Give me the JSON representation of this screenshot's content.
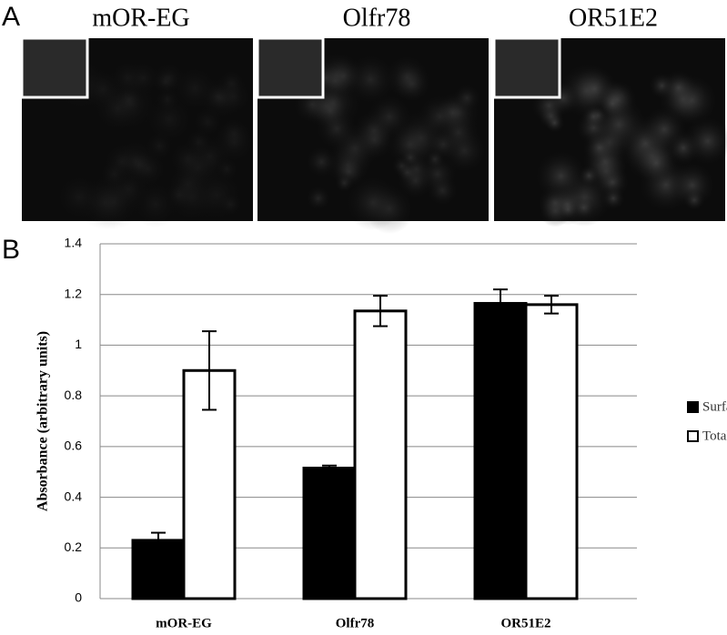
{
  "panel_a": {
    "label": "A",
    "images": [
      "mOR-EG",
      "Olfr78",
      "OR51E2"
    ]
  },
  "chart_data": {
    "type": "bar",
    "label": "B",
    "ylabel": "Absorbance (arbitrary units)",
    "categories": [
      "mOR-EG",
      "Olfr78",
      "OR51E2"
    ],
    "series": [
      {
        "name": "Surface",
        "color": "#000000",
        "values": [
          0.23,
          0.515,
          1.165
        ],
        "errors": [
          0.03,
          0.01,
          0.055
        ]
      },
      {
        "name": "Total",
        "color": "#ffffff",
        "values": [
          0.9,
          1.135,
          1.16
        ],
        "errors": [
          0.155,
          0.06,
          0.035
        ]
      }
    ],
    "ylim": [
      0,
      1.4
    ],
    "yticks": [
      0,
      0.2,
      0.4,
      0.6,
      0.8,
      1,
      1.2,
      1.4
    ],
    "grid": true,
    "legend": "right"
  }
}
